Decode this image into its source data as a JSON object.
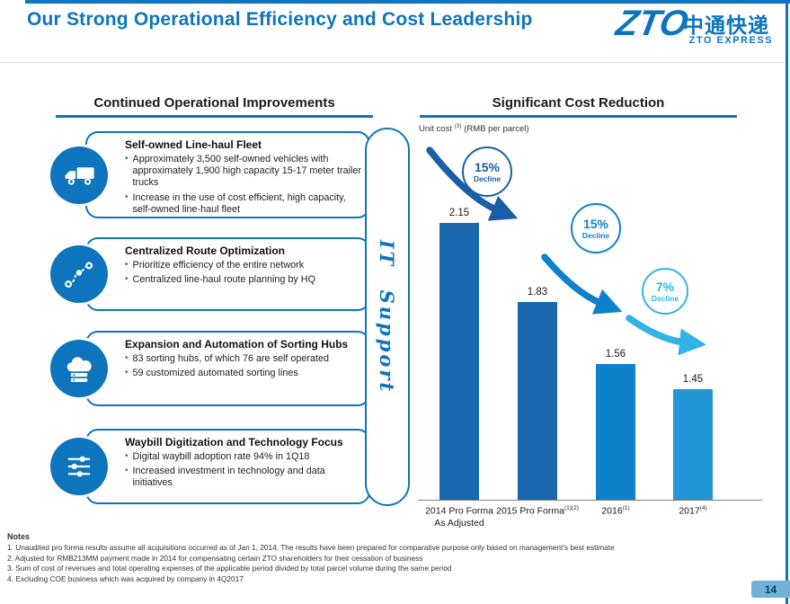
{
  "slide": {
    "title": "Our Strong Operational Efficiency and Cost Leadership",
    "page_number": "14"
  },
  "logo": {
    "wordmark": "ZTO",
    "chinese_name": "中通快递",
    "english_name": "ZTO EXPRESS"
  },
  "left_panel": {
    "header": "Continued Operational Improvements",
    "it_support_label": "IT Support",
    "items": [
      {
        "icon": "truck-icon",
        "title": "Self-owned Line-haul Fleet",
        "bullets": [
          "Approximately 3,500 self-owned vehicles with approximately 1,900 high capacity 15-17 meter trailer trucks",
          "Increase in the use of cost efficient, high capacity, self-owned line-haul fleet"
        ]
      },
      {
        "icon": "route-icon",
        "title": "Centralized Route Optimization",
        "bullets": [
          "Prioritize efficiency of the entire network",
          "Centralized line-haul route planning by HQ"
        ]
      },
      {
        "icon": "cloud-sorting-icon",
        "title": "Expansion and Automation of Sorting Hubs",
        "bullets": [
          "83 sorting hubs, of which 76 are self operated",
          "59 customized automated sorting lines"
        ]
      },
      {
        "icon": "sliders-icon",
        "title": "Waybill Digitization and Technology Focus",
        "bullets": [
          "Digital waybill adoption rate 94% in 1Q18",
          "Increased investment in technology and data initiatives"
        ]
      }
    ]
  },
  "right_panel": {
    "header": "Significant Cost Reduction",
    "unit_label": {
      "prefix": "Unit cost ",
      "sup": "(3)",
      "suffix": " (RMB per parcel)"
    }
  },
  "chart_data": {
    "type": "bar",
    "title": "Significant Cost Reduction",
    "ylabel": "Unit cost (RMB per parcel)",
    "categories": [
      "2014 Pro Forma As Adjusted",
      "2015 Pro Forma (1)(2)",
      "2016 (1)",
      "2017 (4)"
    ],
    "values": [
      2.15,
      1.83,
      1.56,
      1.45
    ],
    "ylim": [
      0,
      2.4
    ],
    "grid": false,
    "legend": false,
    "bars": [
      {
        "label_line1": "2014 Pro Forma",
        "label_line2": "As Adjusted",
        "sup": "",
        "value": "2.15",
        "color": "#1b67ae"
      },
      {
        "label_line1": "2015 Pro Forma",
        "label_line2": "",
        "sup": "(1)(2)",
        "value": "1.83",
        "color": "#1b67ae"
      },
      {
        "label_line1": "2016",
        "label_line2": "",
        "sup": "(1)",
        "value": "1.56",
        "color": "#0f81cb"
      },
      {
        "label_line1": "2017",
        "label_line2": "",
        "sup": "(4)",
        "value": "1.45",
        "color": "#2397d5"
      }
    ],
    "annotations": [
      {
        "pct": "15%",
        "word": "Decline",
        "color": "#1a5ea6"
      },
      {
        "pct": "15%",
        "word": "Decline",
        "color": "#0f81cb"
      },
      {
        "pct": "7%",
        "word": "Decline",
        "color": "#33b3e5"
      }
    ]
  },
  "notes": {
    "header": "Notes",
    "lines": [
      "1. Unaudited pro forma results assume all acquisitions occurred as of Jan 1, 2014. The results have been prepared for comparative purpose only based on management's best estimate",
      "2. Adjusted for RMB213MM payment made in 2014 for compensating certain ZTO shareholders for their cessation of business",
      "3. Sum of cost of revenues and total operating expenses of the applicable period divided by total parcel volume during the same period",
      "4. Excluding COE business which was acquired by company in 4Q2017"
    ]
  },
  "colors": {
    "accent": "#0e74bd"
  }
}
